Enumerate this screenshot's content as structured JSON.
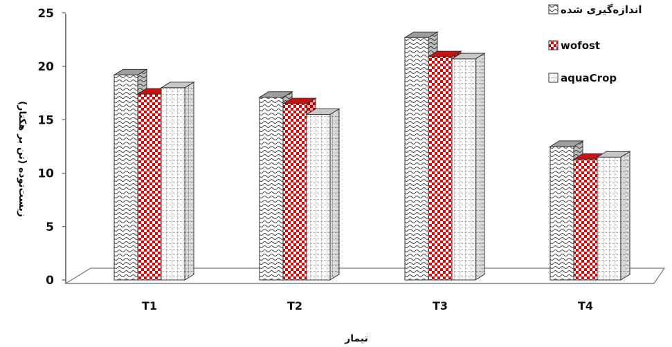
{
  "chart_data": {
    "type": "bar",
    "style": "3d-clustered-column",
    "categories": [
      "T1",
      "T2",
      "T3",
      "T4"
    ],
    "series": [
      {
        "name": "اندازه‌گیری شده",
        "values": [
          19.2,
          17.1,
          22.7,
          12.5
        ],
        "pattern": "wave",
        "color": "#8a8a8a"
      },
      {
        "name": "wofost",
        "values": [
          17.4,
          16.5,
          20.9,
          11.3
        ],
        "pattern": "checker",
        "color": "#e00000"
      },
      {
        "name": "aquaCrop",
        "values": [
          18.0,
          15.5,
          20.7,
          11.5
        ],
        "pattern": "dotted-grid",
        "color": "#808080"
      }
    ],
    "xlabel": "تیمار",
    "ylabel": "زیست‌توده (تن بر هکتار)",
    "yticks": [
      "0",
      "5",
      "10",
      "15",
      "20",
      "25"
    ],
    "ylim": [
      0,
      25
    ],
    "legend_position": "top-right",
    "grid": false
  }
}
